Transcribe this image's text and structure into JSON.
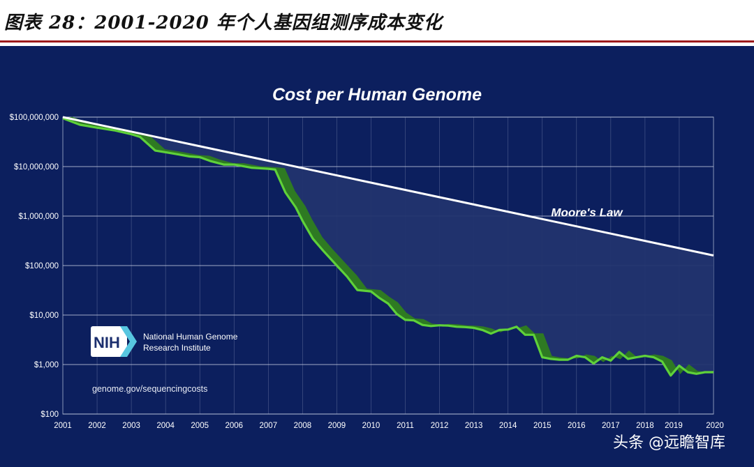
{
  "caption": "图表 28：2001-2020 年个人基因组测序成本变化",
  "chart_data": {
    "type": "line",
    "title": "Cost per Human Genome",
    "yscale": "log",
    "ylim": [
      100,
      100000000
    ],
    "xlim": [
      2001,
      2020
    ],
    "y_ticks": [
      100,
      1000,
      10000,
      100000,
      1000000,
      10000000,
      100000000
    ],
    "y_tick_labels": [
      "$100",
      "$1,000",
      "$10,000",
      "$100,000",
      "$1,000,000",
      "$10,000,000",
      "$100,000,000"
    ],
    "x_ticks": [
      2001,
      2002,
      2003,
      2004,
      2005,
      2006,
      2007,
      2008,
      2009,
      2010,
      2011,
      2012,
      2013,
      2014,
      2015,
      2016,
      2017,
      2018,
      2019,
      2020
    ],
    "series": [
      {
        "name": "Moore's Law",
        "color": "#ffffff",
        "x": [
          2001,
          2020
        ],
        "values": [
          100000000,
          160000
        ]
      },
      {
        "name": "Cost per Human Genome",
        "color": "#5fd13a",
        "x": [
          2001,
          2001.5,
          2002,
          2002.5,
          2003,
          2003.25,
          2003.7,
          2004,
          2004.3,
          2004.7,
          2005,
          2005.3,
          2005.7,
          2006,
          2006.5,
          2007,
          2007.2,
          2007.5,
          2007.8,
          2008,
          2008.3,
          2008.6,
          2009,
          2009.3,
          2009.6,
          2010,
          2010.25,
          2010.5,
          2010.75,
          2011,
          2011.25,
          2011.5,
          2011.75,
          2012,
          2012.25,
          2012.5,
          2012.75,
          2013,
          2013.25,
          2013.5,
          2013.75,
          2014,
          2014.25,
          2014.5,
          2014.75,
          2015,
          2015.25,
          2015.5,
          2015.75,
          2016,
          2016.25,
          2016.5,
          2016.75,
          2017,
          2017.25,
          2017.5,
          2017.75,
          2018,
          2018.25,
          2018.5,
          2018.75,
          2019,
          2019.25,
          2019.5,
          2019.75,
          2020
        ],
        "values": [
          95000000,
          70000000,
          61000000,
          54000000,
          45000000,
          40000000,
          21000000,
          19500000,
          18000000,
          16000000,
          15500000,
          13000000,
          11000000,
          11000000,
          9500000,
          9000000,
          8700000,
          3000000,
          1500000,
          800000,
          350000,
          200000,
          100000,
          60000,
          32000,
          30000,
          22000,
          17000,
          10500,
          8000,
          7800,
          6300,
          6000,
          6200,
          6100,
          5800,
          5700,
          5500,
          5000,
          4200,
          5000,
          5100,
          5800,
          4000,
          4000,
          1400,
          1300,
          1250,
          1250,
          1500,
          1400,
          1050,
          1400,
          1200,
          1800,
          1300,
          1400,
          1500,
          1400,
          1150,
          600,
          950,
          700,
          650,
          700,
          700
        ]
      }
    ],
    "annotations": [
      {
        "text": "Moore's Law",
        "x": 2016.3,
        "y": 1200000
      }
    ]
  },
  "logo": {
    "name": "NIH",
    "org_line1": "National Human Genome",
    "org_line2": "Research Institute",
    "url": "genome.gov/sequencingcosts"
  },
  "watermark": "头条 @远瞻智库",
  "colors": {
    "panel_bg": "#0c1f5e",
    "grid": "#8794b8",
    "band": "#2e7a22",
    "line": "#5fd13a",
    "gap_fill": "#22346e",
    "accent_rule": "#9e1b1b"
  }
}
